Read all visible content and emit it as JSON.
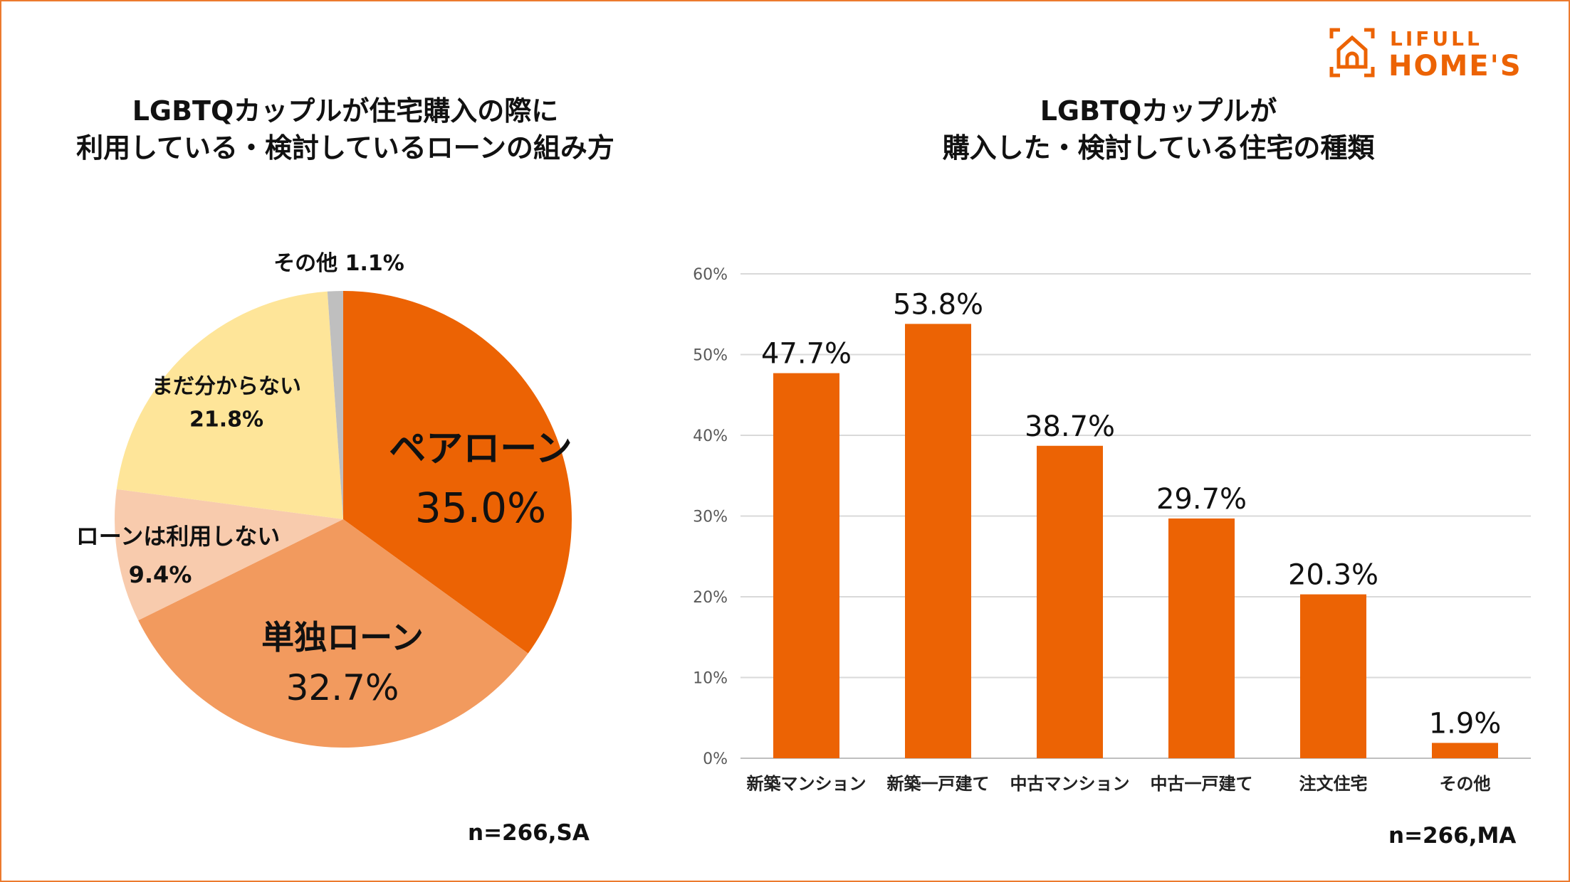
{
  "logo": {
    "line1": "LIFULL",
    "line2": "HOME'S",
    "icon": "house-icon",
    "color": "#EC6304"
  },
  "chart_data": [
    {
      "type": "pie",
      "title": "LGBTQカップルが住宅購入の際に\n利用している・検討しているローンの組み方",
      "title_lines": [
        "LGBTQカップルが住宅購入の際に",
        "利用している・検討しているローンの組み方"
      ],
      "slices": [
        {
          "label": "ペアローン",
          "value": 35.0,
          "value_label": "35.0%",
          "color": "#EC6304"
        },
        {
          "label": "単独ローン",
          "value": 32.7,
          "value_label": "32.7%",
          "color": "#F29A5E"
        },
        {
          "label": "ローンは利用しない",
          "value": 9.4,
          "value_label": "9.4%",
          "color": "#F8CBAD"
        },
        {
          "label": "まだ分からない",
          "value": 21.8,
          "value_label": "21.8%",
          "color": "#FEE599"
        },
        {
          "label": "その他",
          "value": 1.1,
          "value_label": "1.1%",
          "color": "#BFBFBF"
        }
      ],
      "note": "n=266,SA"
    },
    {
      "type": "bar",
      "title_lines": [
        "LGBTQカップルが",
        "購入した・検討している住宅の種類"
      ],
      "categories": [
        "新築マンション",
        "新築一戸建て",
        "中古マンション",
        "中古一戸建て",
        "注文住宅",
        "その他"
      ],
      "values": [
        47.7,
        53.8,
        38.7,
        29.7,
        20.3,
        1.9
      ],
      "value_labels": [
        "47.7%",
        "53.8%",
        "38.7%",
        "29.7%",
        "20.3%",
        "1.9%"
      ],
      "ylim": [
        0,
        60
      ],
      "yticks": [
        "0%",
        "10%",
        "20%",
        "30%",
        "40%",
        "50%",
        "60%"
      ],
      "grid": true,
      "color": "#EC6304",
      "note": "n=266,MA"
    }
  ]
}
